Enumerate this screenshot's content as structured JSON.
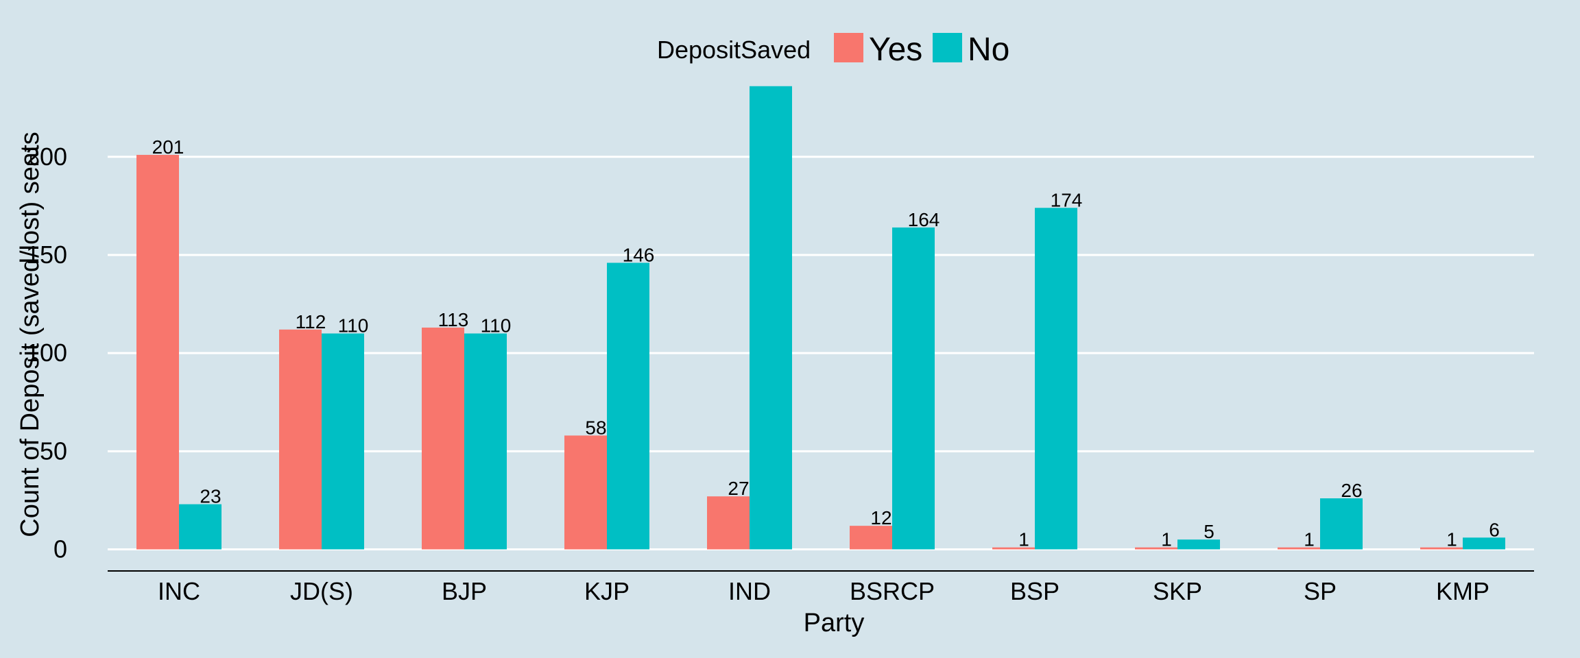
{
  "chart_data": {
    "type": "bar",
    "xlabel": "Party",
    "ylabel": "Count of Deposit (saved/lost) seats",
    "categories": [
      "INC",
      "JD(S)",
      "BJP",
      "KJP",
      "IND",
      "BSRCP",
      "BSP",
      "SKP",
      "SP",
      "KMP"
    ],
    "series": [
      {
        "name": "Yes",
        "color": "#f8766d",
        "values": [
          201,
          112,
          113,
          58,
          27,
          12,
          1,
          1,
          1,
          1
        ],
        "labels": [
          "201",
          "112",
          "113",
          "58",
          "27",
          "12",
          "1",
          "1",
          "1",
          "1"
        ]
      },
      {
        "name": "No",
        "color": "#00bfc4",
        "values": [
          23,
          110,
          110,
          146,
          236,
          164,
          174,
          5,
          26,
          6
        ],
        "labels": [
          "23",
          "110",
          "110",
          "146",
          "",
          "164",
          "174",
          "5",
          "26",
          "6"
        ]
      }
    ],
    "ylim": [
      -11,
      238
    ],
    "yticks": [
      0,
      50,
      100,
      150,
      200
    ],
    "grid": "horizontal major, white",
    "legend": {
      "title": "DepositSaved",
      "position": "top",
      "items": [
        "Yes",
        "No"
      ]
    },
    "background": "#d5e4eb"
  }
}
